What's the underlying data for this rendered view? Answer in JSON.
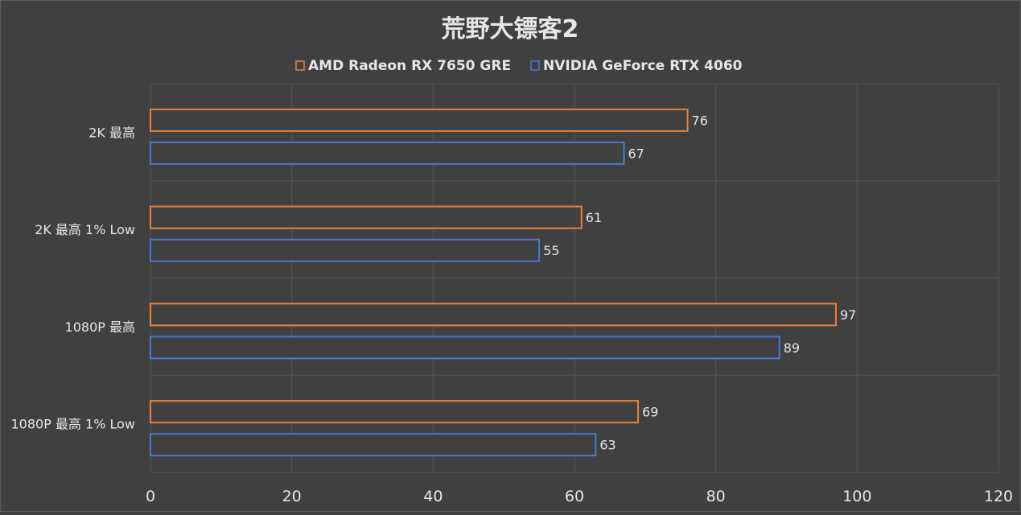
{
  "chart_data": {
    "type": "bar",
    "orientation": "horizontal",
    "title": "荒野大镖客2",
    "categories": [
      "2K 最高",
      "2K 最高 1% Low",
      "1080P 最高",
      "1080P 最高 1% Low"
    ],
    "series": [
      {
        "name": "AMD Radeon RX 7650 GRE",
        "color": "#e8823a",
        "values": [
          76,
          61,
          97,
          69
        ]
      },
      {
        "name": "NVIDIA GeForce RTX 4060",
        "color": "#4a78d0",
        "values": [
          67,
          55,
          89,
          63
        ]
      }
    ],
    "xlim": [
      0,
      120
    ],
    "xticks": [
      "0",
      "20",
      "40",
      "60",
      "80",
      "100",
      "120"
    ],
    "grid": true,
    "legend_position": "top-center",
    "background": "#404040",
    "text_color": "#e6e6e6"
  }
}
